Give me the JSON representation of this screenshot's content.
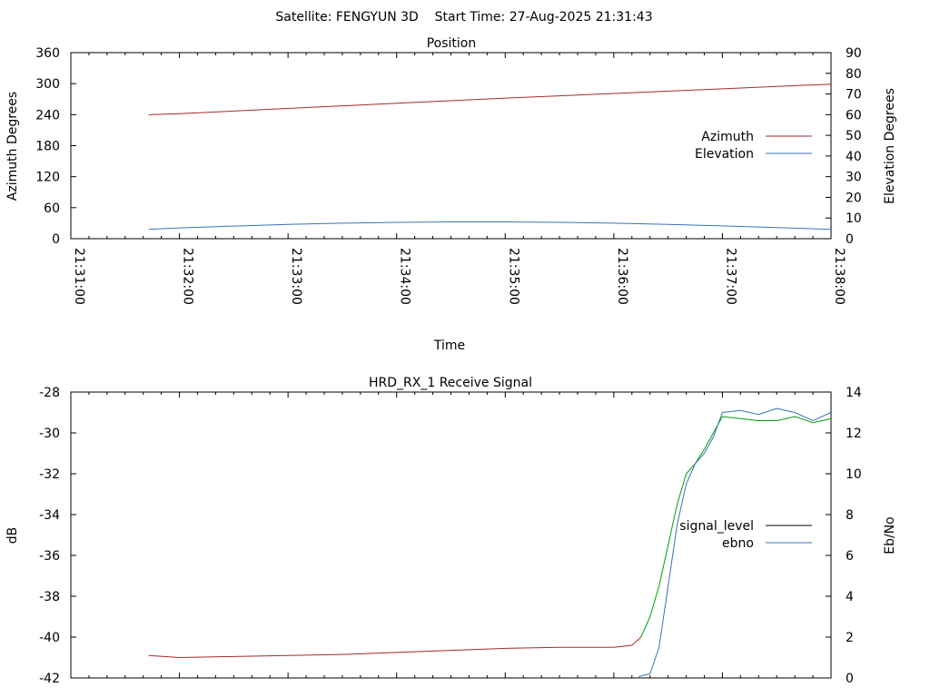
{
  "header": {
    "title": "Satellite: FENGYUN 3D    Start Time: 27-Aug-2025 21:31:43"
  },
  "chart_data": [
    {
      "type": "line",
      "title": "Position",
      "xlabel": "Time",
      "ylabel": "Azimuth Degrees",
      "y2label": "Elevation Degrees",
      "xlim": [
        "21:31:00",
        "21:38:00"
      ],
      "ylim": [
        0,
        360
      ],
      "y2lim": [
        0,
        90
      ],
      "x_ticks": [
        "21:31:00",
        "21:32:00",
        "21:33:00",
        "21:34:00",
        "21:35:00",
        "21:36:00",
        "21:37:00",
        "21:38:00"
      ],
      "y_ticks": [
        "0",
        "60",
        "120",
        "180",
        "240",
        "300",
        "360"
      ],
      "y2_ticks": [
        "0",
        "10",
        "20",
        "30",
        "40",
        "50",
        "60",
        "70",
        "80",
        "90"
      ],
      "grid": false,
      "legend": "right",
      "series": [
        {
          "name": "Azimuth",
          "axis": "y",
          "color": "#a52a2a",
          "x": [
            "21:31:43",
            "21:32:00",
            "21:33:00",
            "21:34:00",
            "21:35:00",
            "21:36:00",
            "21:37:00",
            "21:38:00"
          ],
          "y": [
            240,
            242,
            252,
            262,
            272,
            281,
            290,
            299
          ]
        },
        {
          "name": "Elevation",
          "axis": "y2",
          "color": "#3a73b6",
          "x": [
            "21:31:43",
            "21:32:00",
            "21:32:30",
            "21:33:00",
            "21:33:30",
            "21:34:00",
            "21:34:30",
            "21:35:00",
            "21:35:30",
            "21:36:00",
            "21:36:30",
            "21:37:00",
            "21:37:30",
            "21:38:00"
          ],
          "y": [
            4.5,
            5.2,
            6.1,
            6.9,
            7.5,
            7.9,
            8.1,
            8.1,
            7.9,
            7.5,
            6.9,
            6.2,
            5.4,
            4.5
          ]
        }
      ]
    },
    {
      "type": "line",
      "title": "HRD_RX_1 Receive Signal",
      "ylabel": "dB",
      "y2label": "Eb/No",
      "xlim": [
        "21:31:00",
        "21:38:00"
      ],
      "ylim": [
        -42,
        -28
      ],
      "y2lim": [
        0,
        14
      ],
      "y_ticks": [
        "-28",
        "-30",
        "-32",
        "-34",
        "-36",
        "-38",
        "-40",
        "-42"
      ],
      "y2_ticks": [
        "0",
        "2",
        "4",
        "6",
        "8",
        "10",
        "12",
        "14"
      ],
      "grid": false,
      "legend": "right",
      "series": [
        {
          "name": "signal_level",
          "axis": "y",
          "color": "#a52a2a",
          "color_high": "#00a000",
          "x": [
            "21:31:43",
            "21:32:00",
            "21:32:30",
            "21:33:00",
            "21:33:30",
            "21:34:00",
            "21:34:30",
            "21:35:00",
            "21:35:30",
            "21:36:00",
            "21:36:10",
            "21:36:15",
            "21:36:20",
            "21:36:25",
            "21:36:30",
            "21:36:35",
            "21:36:40",
            "21:36:45",
            "21:36:50",
            "21:36:55",
            "21:37:00",
            "21:37:10",
            "21:37:20",
            "21:37:30",
            "21:37:40",
            "21:37:50",
            "21:38:00"
          ],
          "y": [
            -40.9,
            -41.0,
            -40.95,
            -40.9,
            -40.85,
            -40.75,
            -40.65,
            -40.55,
            -40.5,
            -40.5,
            -40.4,
            -40.0,
            -39.0,
            -37.5,
            -35.5,
            -33.5,
            -32.0,
            -31.5,
            -30.8,
            -30.0,
            -29.2,
            -29.3,
            -29.4,
            -29.4,
            -29.2,
            -29.5,
            -29.3
          ]
        },
        {
          "name": "ebno",
          "axis": "y2",
          "color": "#3a73b6",
          "x": [
            "21:36:13",
            "21:36:15",
            "21:36:20",
            "21:36:25",
            "21:36:30",
            "21:36:35",
            "21:36:40",
            "21:36:45",
            "21:36:50",
            "21:36:55",
            "21:37:00",
            "21:37:10",
            "21:37:20",
            "21:37:30",
            "21:37:40",
            "21:37:50",
            "21:38:00"
          ],
          "y": [
            0,
            0.1,
            0.2,
            1.5,
            4.5,
            7.5,
            9.5,
            10.5,
            11.0,
            11.8,
            13.0,
            13.1,
            12.9,
            13.2,
            13.0,
            12.6,
            13.0
          ]
        }
      ]
    }
  ]
}
